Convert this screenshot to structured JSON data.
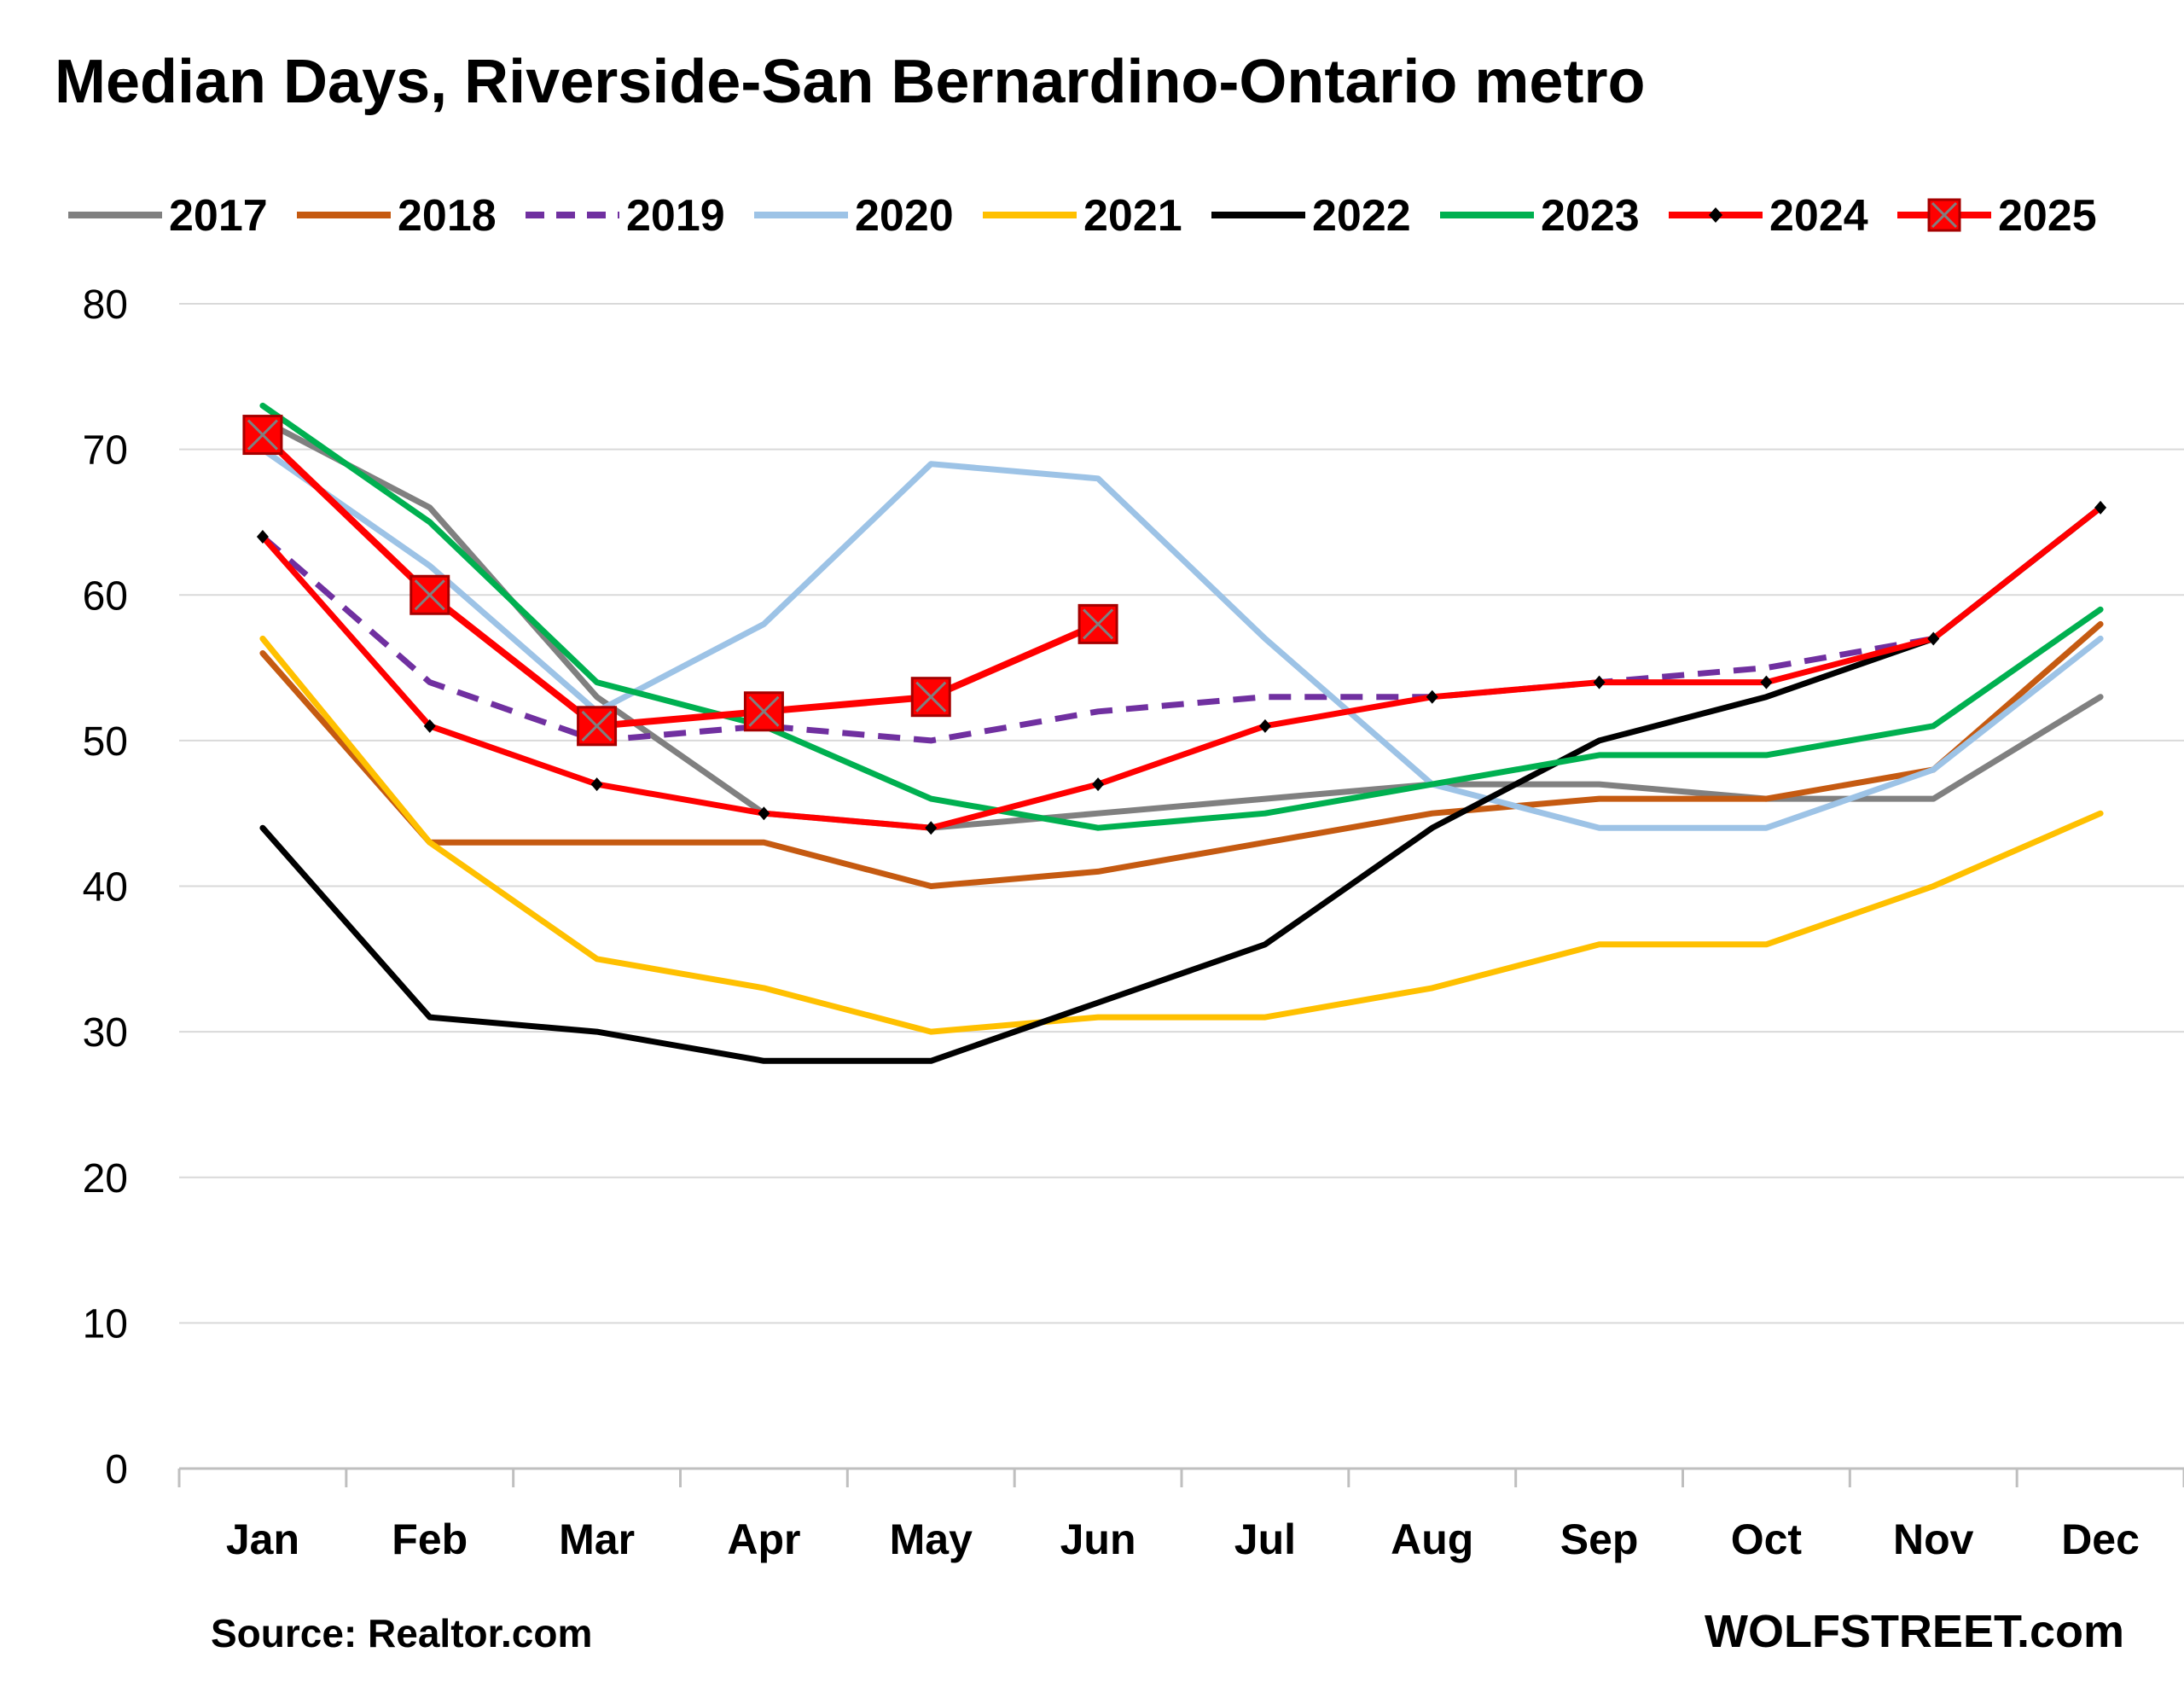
{
  "title": "Median Days, Riverside-San Bernardino-Ontario metro",
  "source": "Source: Realtor.com",
  "brand": "WOLFSTREET.com",
  "chart_data": {
    "type": "line",
    "title": "Median Days, Riverside-San Bernardino-Ontario metro",
    "xlabel": "",
    "ylabel": "",
    "categories": [
      "Jan",
      "Feb",
      "Mar",
      "Apr",
      "May",
      "Jun",
      "Jul",
      "Aug",
      "Sep",
      "Oct",
      "Nov",
      "Dec"
    ],
    "ylim": [
      0,
      80
    ],
    "yticks": [
      "0",
      "10",
      "20",
      "30",
      "40",
      "50",
      "60",
      "70",
      "80"
    ],
    "grid": "horizontal",
    "legend_position": "top",
    "series": [
      {
        "name": "2017",
        "color": "#808080",
        "style": "solid",
        "marker": "none",
        "values": [
          72,
          66,
          53,
          45,
          44,
          45,
          46,
          47,
          47,
          46,
          46,
          53
        ]
      },
      {
        "name": "2018",
        "color": "#C55A11",
        "style": "solid",
        "marker": "none",
        "values": [
          56,
          43,
          43,
          43,
          40,
          41,
          43,
          45,
          46,
          46,
          48,
          58
        ]
      },
      {
        "name": "2019",
        "color": "#7030A0",
        "style": "dashed",
        "marker": "none",
        "values": [
          64,
          54,
          50,
          51,
          50,
          52,
          53,
          53,
          54,
          55,
          57,
          66
        ]
      },
      {
        "name": "2020",
        "color": "#9DC3E6",
        "style": "solid",
        "marker": "none",
        "values": [
          70,
          62,
          52,
          58,
          69,
          68,
          57,
          47,
          44,
          44,
          48,
          57
        ]
      },
      {
        "name": "2021",
        "color": "#FFC000",
        "style": "solid",
        "marker": "none",
        "values": [
          57,
          43,
          35,
          33,
          30,
          31,
          31,
          33,
          36,
          36,
          40,
          45
        ]
      },
      {
        "name": "2022",
        "color": "#000000",
        "style": "solid",
        "marker": "none",
        "values": [
          44,
          31,
          30,
          28,
          28,
          32,
          36,
          44,
          50,
          53,
          57,
          66
        ]
      },
      {
        "name": "2023",
        "color": "#00B050",
        "style": "solid",
        "marker": "none",
        "values": [
          73,
          65,
          54,
          51,
          46,
          44,
          45,
          47,
          49,
          49,
          51,
          59
        ]
      },
      {
        "name": "2024",
        "color": "#FF0000",
        "style": "solid",
        "marker": "diamond",
        "values": [
          64,
          51,
          47,
          45,
          44,
          47,
          51,
          53,
          54,
          54,
          57,
          66
        ]
      },
      {
        "name": "2025",
        "color": "#FF0000",
        "style": "solid",
        "marker": "square",
        "values": [
          71,
          60,
          51,
          52,
          53,
          58,
          null,
          null,
          null,
          null,
          null,
          null
        ]
      }
    ]
  }
}
